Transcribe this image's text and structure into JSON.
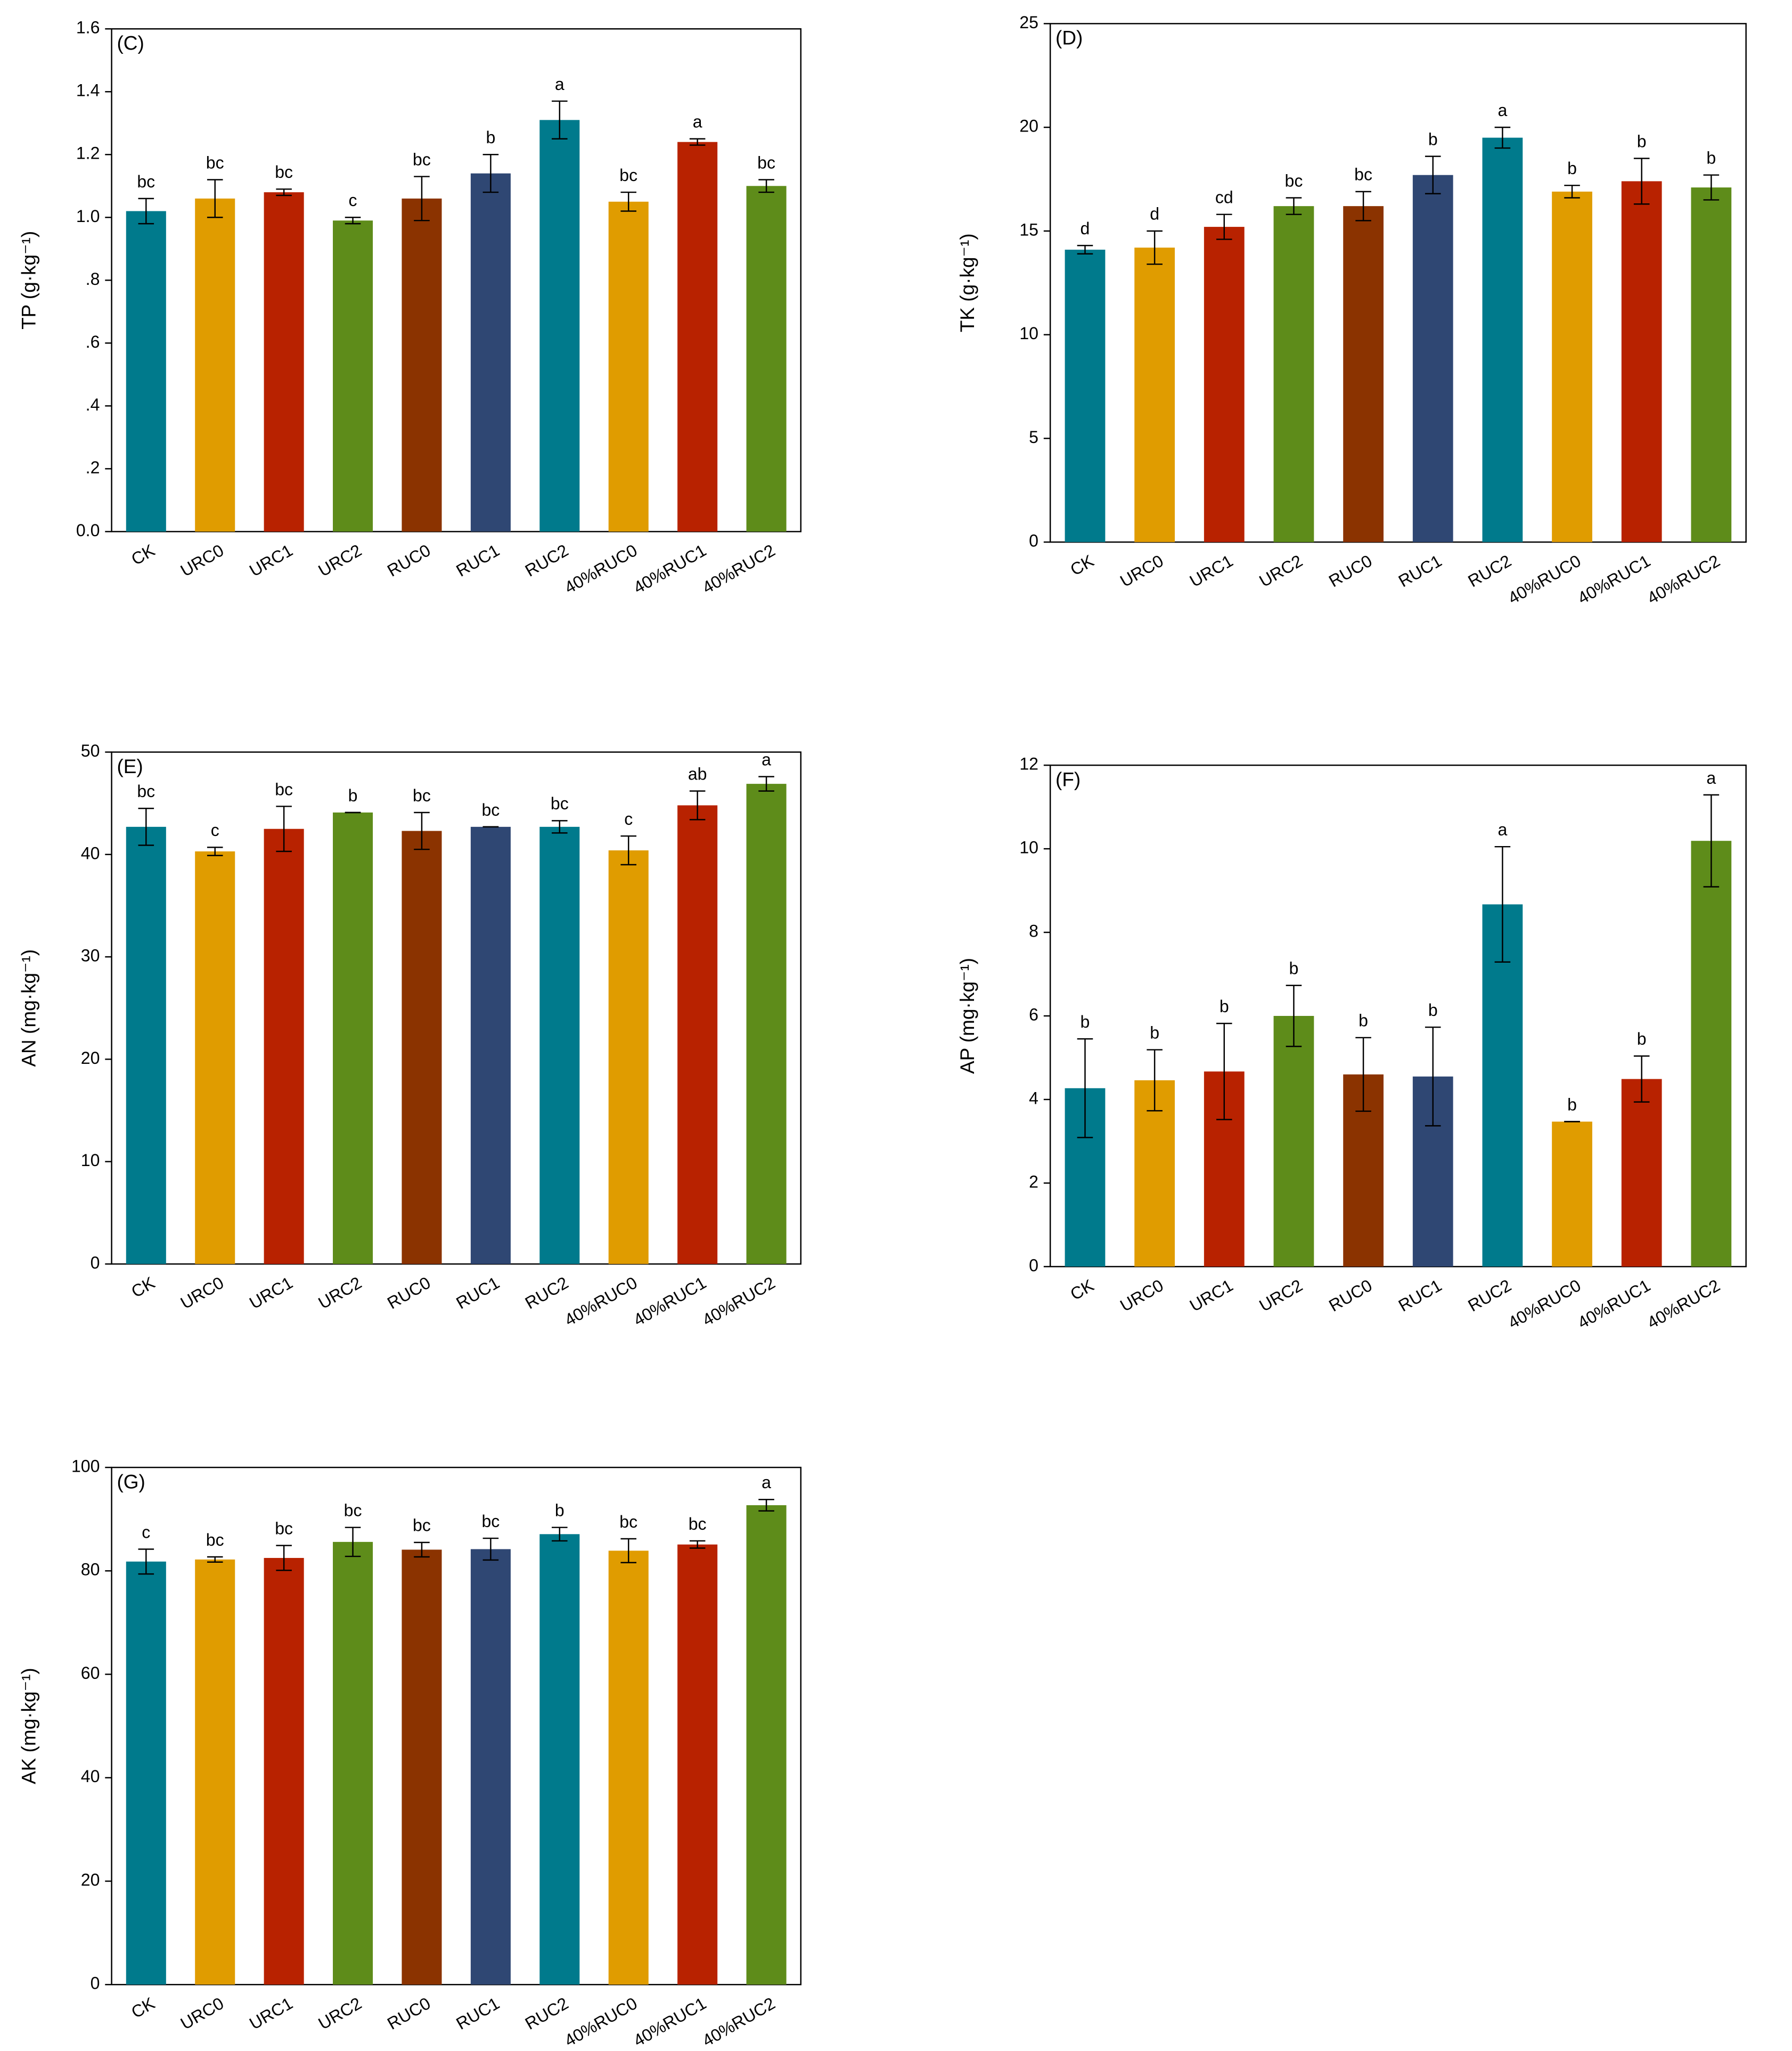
{
  "chart_data": [
    {
      "type": "bar",
      "panel": "(C)",
      "y_label": "TP (g·kg⁻¹)",
      "categories": [
        "CK",
        "URC0",
        "URC1",
        "URC2",
        "RUC0",
        "RUC1",
        "RUC2",
        "40%RUC0",
        "40%RUC1",
        "40%RUC2"
      ],
      "values": [
        1.02,
        1.06,
        1.08,
        0.99,
        1.06,
        1.14,
        1.31,
        1.05,
        1.24,
        1.1
      ],
      "errors": [
        0.04,
        0.06,
        0.01,
        0.01,
        0.07,
        0.06,
        0.06,
        0.03,
        0.01,
        0.02
      ],
      "letters": [
        "bc",
        "bc",
        "bc",
        "c",
        "bc",
        "b",
        "a",
        "bc",
        "a",
        "bc"
      ],
      "colors": [
        "#007a8c",
        "#e09c00",
        "#b82200",
        "#5e8c1a",
        "#8b3300",
        "#2f4773",
        "#007a8c",
        "#e09c00",
        "#b82200",
        "#5e8c1a"
      ],
      "ylim": [
        0,
        1.6
      ],
      "yticks": [
        {
          "value": 0,
          "label": "0.0"
        },
        {
          "value": 0.2,
          "label": ".2"
        },
        {
          "value": 0.4,
          "label": ".4"
        },
        {
          "value": 0.6,
          "label": ".6"
        },
        {
          "value": 0.8,
          "label": ".8"
        },
        {
          "value": 1.0,
          "label": "1.0"
        },
        1.2,
        1.4,
        1.6
      ]
    },
    {
      "type": "bar",
      "panel": "(D)",
      "y_label": "TK (g·kg⁻¹)",
      "categories": [
        "CK",
        "URC0",
        "URC1",
        "URC2",
        "RUC0",
        "RUC1",
        "RUC2",
        "40%RUC0",
        "40%RUC1",
        "40%RUC2"
      ],
      "values": [
        14.1,
        14.2,
        15.2,
        16.2,
        16.2,
        17.7,
        19.5,
        16.9,
        17.4,
        17.1
      ],
      "errors": [
        0.2,
        0.8,
        0.6,
        0.4,
        0.7,
        0.9,
        0.5,
        0.3,
        1.1,
        0.6
      ],
      "letters": [
        "d",
        "d",
        "cd",
        "bc",
        "bc",
        "b",
        "a",
        "b",
        "b",
        "b"
      ],
      "colors": [
        "#007a8c",
        "#e09c00",
        "#b82200",
        "#5e8c1a",
        "#8b3300",
        "#2f4773",
        "#007a8c",
        "#e09c00",
        "#b82200",
        "#5e8c1a"
      ],
      "ylim": [
        0,
        25
      ],
      "yticks": [
        0,
        5,
        10,
        15,
        20,
        25
      ]
    },
    {
      "type": "bar",
      "panel": "(E)",
      "y_label": "AN (mg·kg⁻¹)",
      "categories": [
        "CK",
        "URC0",
        "URC1",
        "URC2",
        "RUC0",
        "RUC1",
        "RUC2",
        "40%RUC0",
        "40%RUC1",
        "40%RUC2"
      ],
      "values": [
        42.7,
        40.3,
        42.5,
        44.1,
        42.3,
        42.7,
        42.7,
        40.4,
        44.8,
        46.9
      ],
      "errors": [
        1.8,
        0.4,
        2.2,
        0,
        1.8,
        0,
        0.6,
        1.4,
        1.4,
        0.7
      ],
      "letters": [
        "bc",
        "c",
        "bc",
        "b",
        "bc",
        "bc",
        "bc",
        "c",
        "ab",
        "a"
      ],
      "colors": [
        "#007a8c",
        "#e09c00",
        "#b82200",
        "#5e8c1a",
        "#8b3300",
        "#2f4773",
        "#007a8c",
        "#e09c00",
        "#b82200",
        "#5e8c1a"
      ],
      "ylim": [
        0,
        50
      ],
      "yticks": [
        0,
        10,
        20,
        30,
        40,
        50
      ]
    },
    {
      "type": "bar",
      "panel": "(F)",
      "y_label": "AP (mg·kg⁻¹)",
      "categories": [
        "CK",
        "URC0",
        "URC1",
        "URC2",
        "RUC0",
        "RUC1",
        "RUC2",
        "40%RUC0",
        "40%RUC1",
        "40%RUC2"
      ],
      "values": [
        4.27,
        4.46,
        4.67,
        6.0,
        4.6,
        4.55,
        8.67,
        3.47,
        4.49,
        10.19
      ],
      "errors": [
        1.18,
        0.73,
        1.15,
        0.73,
        0.88,
        1.18,
        1.38,
        0,
        0.55,
        1.1
      ],
      "letters": [
        "b",
        "b",
        "b",
        "b",
        "b",
        "b",
        "a",
        "b",
        "b",
        "a"
      ],
      "colors": [
        "#007a8c",
        "#e09c00",
        "#b82200",
        "#5e8c1a",
        "#8b3300",
        "#2f4773",
        "#007a8c",
        "#e09c00",
        "#b82200",
        "#5e8c1a"
      ],
      "ylim": [
        0,
        12
      ],
      "yticks": [
        0,
        2,
        4,
        6,
        8,
        10,
        12
      ]
    },
    {
      "type": "bar",
      "panel": "(G)",
      "y_label": "AK (mg·kg⁻¹)",
      "categories": [
        "CK",
        "URC0",
        "URC1",
        "URC2",
        "RUC0",
        "RUC1",
        "RUC2",
        "40%RUC0",
        "40%RUC1",
        "40%RUC2"
      ],
      "values": [
        81.8,
        82.2,
        82.5,
        85.6,
        84.1,
        84.2,
        87.1,
        83.9,
        85.1,
        92.7
      ],
      "errors": [
        2.4,
        0.5,
        2.4,
        2.8,
        1.4,
        2.1,
        1.3,
        2.3,
        0.7,
        1.1
      ],
      "letters": [
        "c",
        "bc",
        "bc",
        "bc",
        "bc",
        "bc",
        "b",
        "bc",
        "bc",
        "a"
      ],
      "colors": [
        "#007a8c",
        "#e09c00",
        "#b82200",
        "#5e8c1a",
        "#8b3300",
        "#2f4773",
        "#007a8c",
        "#e09c00",
        "#b82200",
        "#5e8c1a"
      ],
      "ylim": [
        0,
        100
      ],
      "yticks": [
        0,
        20,
        40,
        60,
        80,
        100
      ]
    }
  ]
}
